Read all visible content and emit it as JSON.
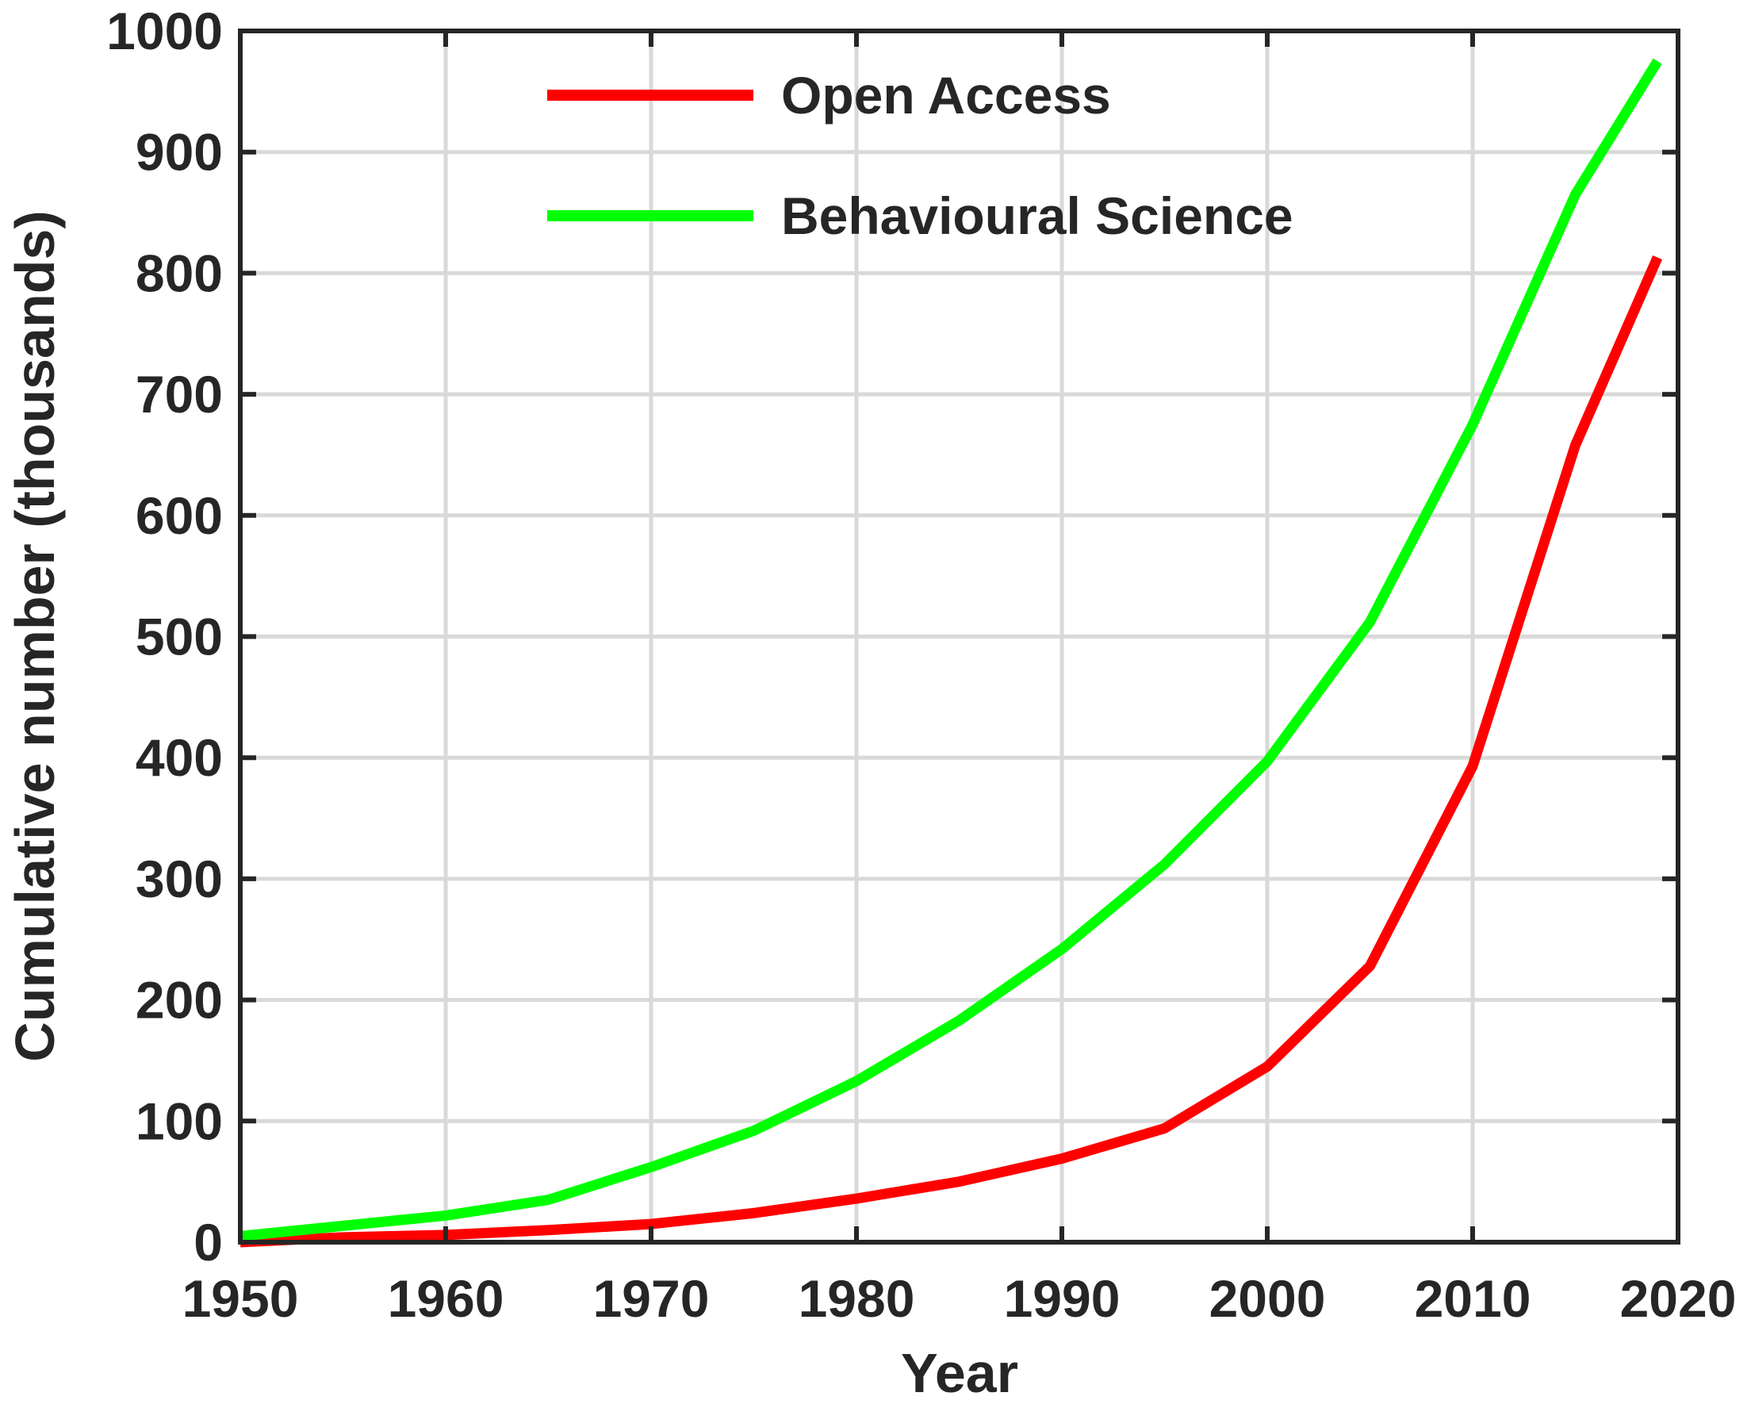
{
  "chart_data": {
    "type": "line",
    "title": "",
    "xlabel": "Year",
    "ylabel": "Cumulative number (thousands)",
    "xlim": [
      1950,
      2020
    ],
    "ylim": [
      0,
      1000
    ],
    "xticks": [
      1950,
      1960,
      1970,
      1980,
      1990,
      2000,
      2010,
      2020
    ],
    "yticks": [
      0,
      100,
      200,
      300,
      400,
      500,
      600,
      700,
      800,
      900,
      1000
    ],
    "grid": true,
    "legend_position": "top-center",
    "series": [
      {
        "name": "Open Access",
        "color": "#ff0000",
        "x": [
          1950,
          1955,
          1960,
          1965,
          1970,
          1975,
          1980,
          1985,
          1990,
          1995,
          2000,
          2005,
          2010,
          2015,
          2019
        ],
        "y": [
          0,
          4,
          6,
          10,
          15,
          24,
          36,
          50,
          69,
          94,
          145,
          228,
          393,
          658,
          813
        ]
      },
      {
        "name": "Behavioural Science",
        "color": "#00ff00",
        "x": [
          1950,
          1960,
          1965,
          1970,
          1975,
          1980,
          1985,
          1990,
          1995,
          2000,
          2005,
          2010,
          2015,
          2019
        ],
        "y": [
          5,
          22,
          35,
          62,
          92,
          133,
          183,
          242,
          312,
          397,
          512,
          675,
          865,
          975
        ]
      }
    ]
  }
}
